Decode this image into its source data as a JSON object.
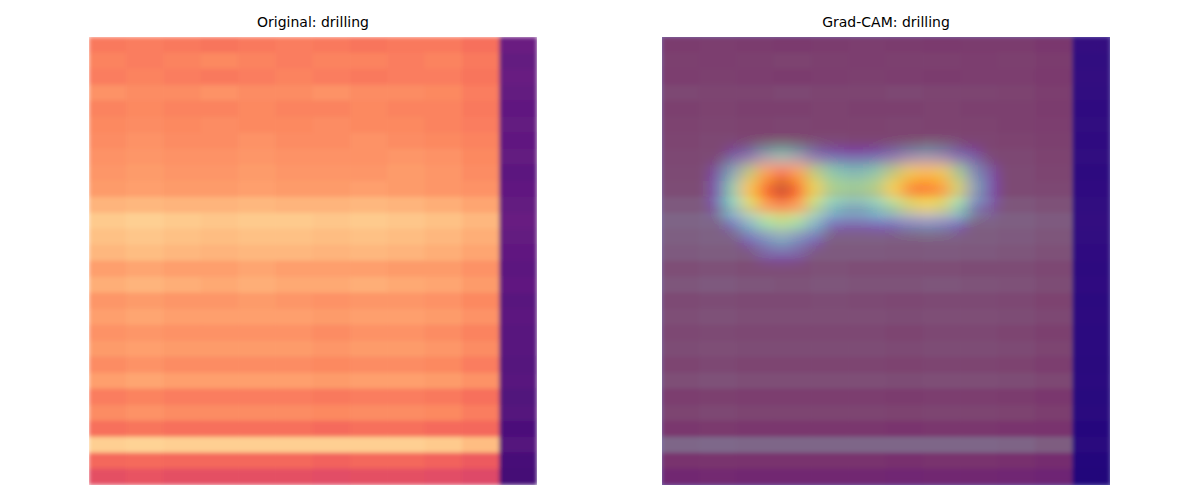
{
  "chart_data": [
    {
      "type": "heatmap",
      "title": "Original: drilling",
      "color": "magma",
      "zlim": [
        0,
        1
      ],
      "tick_labels": false,
      "cells": [
        [
          0.72,
          0.73,
          0.72,
          0.71,
          0.72,
          0.73,
          0.72,
          0.71,
          0.72,
          0.72,
          0.7,
          0.32
        ],
        [
          0.74,
          0.73,
          0.74,
          0.75,
          0.74,
          0.73,
          0.74,
          0.74,
          0.73,
          0.74,
          0.72,
          0.3
        ],
        [
          0.73,
          0.74,
          0.73,
          0.72,
          0.73,
          0.74,
          0.73,
          0.72,
          0.73,
          0.73,
          0.71,
          0.31
        ],
        [
          0.77,
          0.76,
          0.76,
          0.77,
          0.76,
          0.76,
          0.77,
          0.76,
          0.76,
          0.75,
          0.73,
          0.3
        ],
        [
          0.74,
          0.75,
          0.74,
          0.74,
          0.75,
          0.74,
          0.74,
          0.75,
          0.74,
          0.74,
          0.72,
          0.29
        ],
        [
          0.75,
          0.76,
          0.75,
          0.76,
          0.75,
          0.75,
          0.76,
          0.75,
          0.75,
          0.74,
          0.73,
          0.3
        ],
        [
          0.76,
          0.77,
          0.76,
          0.76,
          0.77,
          0.76,
          0.76,
          0.77,
          0.76,
          0.75,
          0.74,
          0.29
        ],
        [
          0.77,
          0.78,
          0.77,
          0.77,
          0.78,
          0.77,
          0.77,
          0.77,
          0.78,
          0.77,
          0.75,
          0.3
        ],
        [
          0.78,
          0.79,
          0.78,
          0.78,
          0.79,
          0.78,
          0.78,
          0.78,
          0.79,
          0.78,
          0.76,
          0.28
        ],
        [
          0.79,
          0.8,
          0.79,
          0.79,
          0.8,
          0.79,
          0.79,
          0.8,
          0.79,
          0.78,
          0.77,
          0.29
        ],
        [
          0.84,
          0.85,
          0.84,
          0.84,
          0.85,
          0.84,
          0.84,
          0.85,
          0.84,
          0.83,
          0.81,
          0.3
        ],
        [
          0.89,
          0.9,
          0.89,
          0.88,
          0.89,
          0.89,
          0.88,
          0.89,
          0.88,
          0.87,
          0.85,
          0.31
        ],
        [
          0.87,
          0.88,
          0.87,
          0.86,
          0.87,
          0.87,
          0.86,
          0.87,
          0.86,
          0.85,
          0.83,
          0.3
        ],
        [
          0.85,
          0.86,
          0.85,
          0.84,
          0.85,
          0.85,
          0.84,
          0.85,
          0.84,
          0.83,
          0.81,
          0.29
        ],
        [
          0.8,
          0.81,
          0.8,
          0.8,
          0.81,
          0.8,
          0.8,
          0.8,
          0.79,
          0.79,
          0.77,
          0.28
        ],
        [
          0.83,
          0.84,
          0.83,
          0.82,
          0.83,
          0.82,
          0.82,
          0.83,
          0.82,
          0.81,
          0.79,
          0.29
        ],
        [
          0.78,
          0.79,
          0.78,
          0.78,
          0.79,
          0.78,
          0.77,
          0.78,
          0.78,
          0.77,
          0.75,
          0.27
        ],
        [
          0.8,
          0.81,
          0.8,
          0.8,
          0.8,
          0.8,
          0.79,
          0.8,
          0.8,
          0.79,
          0.77,
          0.28
        ],
        [
          0.77,
          0.78,
          0.77,
          0.77,
          0.77,
          0.77,
          0.76,
          0.77,
          0.77,
          0.76,
          0.74,
          0.27
        ],
        [
          0.79,
          0.8,
          0.79,
          0.79,
          0.79,
          0.79,
          0.78,
          0.79,
          0.79,
          0.78,
          0.76,
          0.27
        ],
        [
          0.76,
          0.77,
          0.76,
          0.76,
          0.76,
          0.76,
          0.75,
          0.76,
          0.76,
          0.75,
          0.73,
          0.26
        ],
        [
          0.8,
          0.81,
          0.8,
          0.8,
          0.8,
          0.8,
          0.79,
          0.8,
          0.8,
          0.79,
          0.77,
          0.27
        ],
        [
          0.73,
          0.74,
          0.73,
          0.73,
          0.73,
          0.73,
          0.72,
          0.73,
          0.73,
          0.72,
          0.7,
          0.25
        ],
        [
          0.76,
          0.77,
          0.76,
          0.76,
          0.76,
          0.76,
          0.75,
          0.76,
          0.76,
          0.75,
          0.73,
          0.26
        ],
        [
          0.7,
          0.71,
          0.7,
          0.7,
          0.7,
          0.7,
          0.69,
          0.7,
          0.7,
          0.69,
          0.68,
          0.24
        ],
        [
          0.9,
          0.91,
          0.9,
          0.9,
          0.9,
          0.9,
          0.9,
          0.9,
          0.9,
          0.89,
          0.86,
          0.26
        ],
        [
          0.68,
          0.69,
          0.68,
          0.68,
          0.68,
          0.68,
          0.67,
          0.68,
          0.68,
          0.67,
          0.65,
          0.23
        ],
        [
          0.62,
          0.63,
          0.62,
          0.62,
          0.62,
          0.62,
          0.61,
          0.62,
          0.62,
          0.61,
          0.6,
          0.22
        ]
      ]
    },
    {
      "type": "heatmap",
      "title": "Grad-CAM: drilling",
      "color": "jet",
      "zlim": [
        0,
        1
      ],
      "tick_labels": false,
      "cells": [
        [
          0,
          0,
          0,
          0,
          0,
          0,
          0,
          0,
          0,
          0,
          0,
          0,
          0,
          0,
          0,
          0,
          0,
          0,
          0,
          0,
          0,
          0,
          0,
          0,
          0,
          0,
          0,
          0
        ],
        [
          0,
          0,
          0,
          0,
          0,
          0,
          0,
          0,
          0,
          0,
          0,
          0,
          0,
          0,
          0,
          0,
          0,
          0,
          0,
          0,
          0,
          0,
          0,
          0,
          0,
          0,
          0,
          0
        ],
        [
          0,
          0,
          0,
          0,
          0,
          0,
          0,
          0,
          0,
          0,
          0,
          0,
          0,
          0,
          0,
          0,
          0,
          0,
          0,
          0,
          0,
          0,
          0,
          0,
          0,
          0,
          0,
          0
        ],
        [
          0,
          0,
          0,
          0,
          0,
          0,
          0,
          0,
          0,
          0,
          0,
          0,
          0,
          0,
          0,
          0,
          0,
          0,
          0,
          0,
          0,
          0,
          0,
          0,
          0,
          0,
          0,
          0
        ],
        [
          0,
          0,
          0,
          0,
          0,
          0,
          0,
          0,
          0,
          0,
          0,
          0,
          0,
          0,
          0,
          0,
          0,
          0,
          0,
          0,
          0,
          0,
          0,
          0,
          0,
          0,
          0,
          0
        ],
        [
          0,
          0,
          0,
          0,
          0,
          0,
          0,
          0,
          0,
          0,
          0,
          0,
          0,
          0,
          0,
          0,
          0,
          0,
          0,
          0,
          0,
          0,
          0,
          0,
          0,
          0,
          0,
          0
        ],
        [
          0,
          0,
          0,
          0,
          0,
          0,
          0,
          0,
          0,
          0,
          0,
          0,
          0,
          0,
          0,
          0,
          0,
          0,
          0,
          0,
          0,
          0,
          0,
          0,
          0,
          0,
          0,
          0
        ],
        [
          0,
          0,
          0,
          0,
          0.1,
          0.2,
          0.3,
          0.35,
          0.3,
          0.2,
          0.15,
          0.12,
          0.12,
          0.15,
          0.2,
          0.25,
          0.28,
          0.25,
          0.18,
          0.1,
          0,
          0,
          0,
          0,
          0,
          0,
          0,
          0
        ],
        [
          0,
          0,
          0,
          0.1,
          0.3,
          0.5,
          0.7,
          0.8,
          0.7,
          0.5,
          0.4,
          0.35,
          0.35,
          0.4,
          0.5,
          0.6,
          0.65,
          0.6,
          0.45,
          0.25,
          0.1,
          0,
          0,
          0,
          0,
          0,
          0,
          0
        ],
        [
          0,
          0,
          0,
          0.15,
          0.4,
          0.65,
          0.88,
          1,
          0.88,
          0.6,
          0.48,
          0.45,
          0.45,
          0.5,
          0.62,
          0.78,
          0.85,
          0.75,
          0.55,
          0.3,
          0.12,
          0,
          0,
          0,
          0,
          0,
          0,
          0
        ],
        [
          0,
          0,
          0,
          0.1,
          0.35,
          0.55,
          0.75,
          0.85,
          0.75,
          0.5,
          0.35,
          0.3,
          0.3,
          0.35,
          0.45,
          0.55,
          0.6,
          0.55,
          0.4,
          0.2,
          0.08,
          0,
          0,
          0,
          0,
          0,
          0,
          0
        ],
        [
          0,
          0,
          0,
          0,
          0.15,
          0.3,
          0.45,
          0.5,
          0.45,
          0.3,
          0.15,
          0.1,
          0.1,
          0.12,
          0.15,
          0.2,
          0.22,
          0.2,
          0.12,
          0,
          0,
          0,
          0,
          0,
          0,
          0,
          0,
          0
        ],
        [
          0,
          0,
          0,
          0,
          0,
          0.12,
          0.22,
          0.28,
          0.22,
          0.12,
          0,
          0,
          0,
          0,
          0,
          0,
          0,
          0,
          0,
          0,
          0,
          0,
          0,
          0,
          0,
          0,
          0,
          0
        ],
        [
          0,
          0,
          0,
          0,
          0,
          0,
          0.08,
          0.1,
          0.08,
          0,
          0,
          0,
          0,
          0,
          0,
          0,
          0,
          0,
          0,
          0,
          0,
          0,
          0,
          0,
          0,
          0,
          0,
          0
        ],
        [
          0,
          0,
          0,
          0,
          0,
          0,
          0,
          0,
          0,
          0,
          0,
          0,
          0,
          0,
          0,
          0,
          0,
          0,
          0,
          0,
          0,
          0,
          0,
          0,
          0,
          0,
          0,
          0
        ],
        [
          0,
          0,
          0,
          0,
          0,
          0,
          0,
          0,
          0,
          0,
          0,
          0,
          0,
          0,
          0,
          0,
          0,
          0,
          0,
          0,
          0,
          0,
          0,
          0,
          0,
          0,
          0,
          0
        ],
        [
          0,
          0,
          0,
          0,
          0,
          0,
          0,
          0,
          0,
          0,
          0,
          0,
          0,
          0,
          0,
          0,
          0,
          0,
          0,
          0,
          0,
          0,
          0,
          0,
          0,
          0,
          0,
          0
        ],
        [
          0,
          0,
          0,
          0,
          0,
          0,
          0,
          0,
          0,
          0,
          0,
          0,
          0,
          0,
          0,
          0,
          0,
          0,
          0,
          0,
          0,
          0,
          0,
          0,
          0,
          0,
          0,
          0
        ],
        [
          0,
          0,
          0,
          0,
          0,
          0,
          0,
          0,
          0,
          0,
          0,
          0,
          0,
          0,
          0,
          0,
          0,
          0,
          0,
          0,
          0,
          0,
          0,
          0,
          0,
          0,
          0,
          0
        ],
        [
          0,
          0,
          0,
          0,
          0,
          0,
          0,
          0,
          0,
          0,
          0,
          0,
          0,
          0,
          0,
          0,
          0,
          0,
          0,
          0,
          0,
          0,
          0,
          0,
          0,
          0,
          0,
          0
        ],
        [
          0,
          0,
          0,
          0,
          0,
          0,
          0,
          0,
          0,
          0,
          0,
          0,
          0,
          0,
          0,
          0,
          0,
          0,
          0,
          0,
          0,
          0,
          0,
          0,
          0,
          0,
          0,
          0
        ],
        [
          0,
          0,
          0,
          0,
          0,
          0,
          0,
          0,
          0,
          0,
          0,
          0,
          0,
          0,
          0,
          0,
          0,
          0,
          0,
          0,
          0,
          0,
          0,
          0,
          0,
          0,
          0,
          0
        ],
        [
          0,
          0,
          0,
          0,
          0,
          0,
          0,
          0,
          0,
          0,
          0,
          0,
          0,
          0,
          0,
          0,
          0,
          0,
          0,
          0,
          0,
          0,
          0,
          0,
          0,
          0,
          0,
          0
        ],
        [
          0,
          0,
          0,
          0,
          0,
          0,
          0,
          0,
          0,
          0,
          0,
          0,
          0,
          0,
          0,
          0,
          0,
          0,
          0,
          0,
          0,
          0,
          0,
          0,
          0,
          0,
          0,
          0
        ],
        [
          0,
          0,
          0,
          0,
          0,
          0,
          0,
          0,
          0,
          0,
          0,
          0,
          0,
          0,
          0,
          0,
          0,
          0,
          0,
          0,
          0,
          0,
          0,
          0,
          0,
          0,
          0,
          0
        ],
        [
          0,
          0,
          0,
          0,
          0,
          0,
          0,
          0,
          0,
          0,
          0,
          0,
          0,
          0,
          0,
          0,
          0,
          0,
          0,
          0,
          0,
          0,
          0,
          0,
          0,
          0,
          0,
          0
        ],
        [
          0,
          0,
          0,
          0,
          0,
          0,
          0,
          0,
          0,
          0,
          0,
          0,
          0,
          0,
          0,
          0,
          0,
          0,
          0,
          0,
          0,
          0,
          0,
          0,
          0,
          0,
          0,
          0
        ],
        [
          0,
          0,
          0,
          0,
          0,
          0,
          0,
          0,
          0,
          0,
          0,
          0,
          0,
          0,
          0,
          0,
          0,
          0,
          0,
          0,
          0,
          0,
          0,
          0,
          0,
          0,
          0,
          0
        ]
      ]
    }
  ]
}
